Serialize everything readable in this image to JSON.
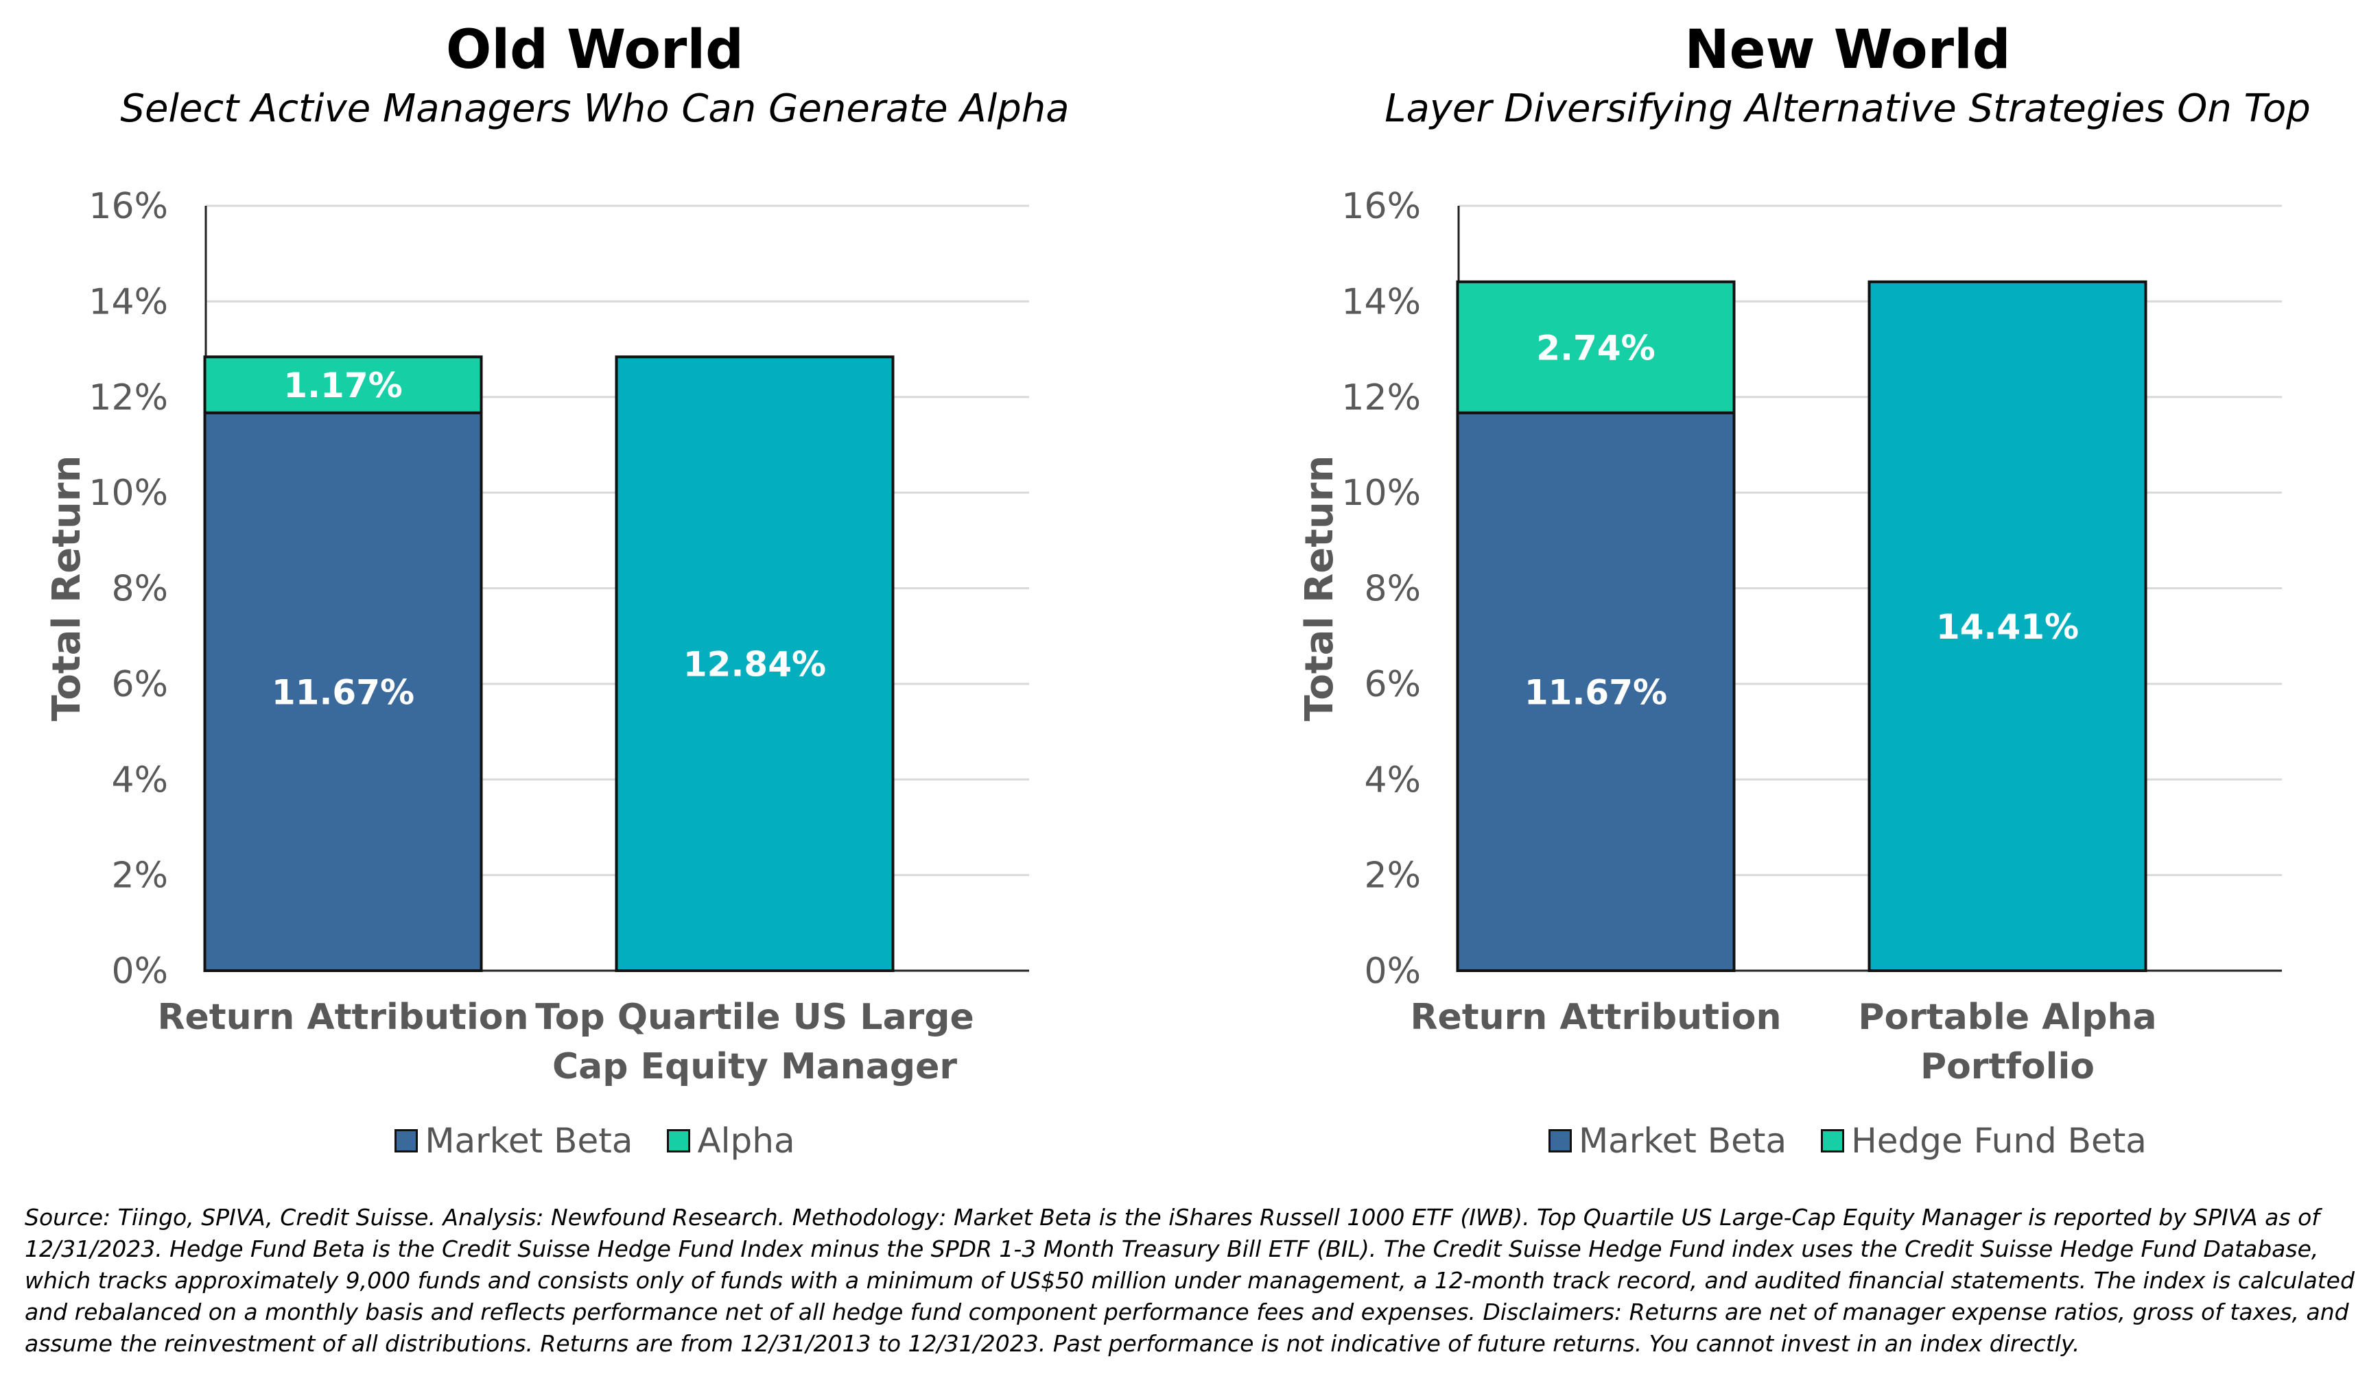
{
  "colors": {
    "market_beta": "#3A6A9C",
    "alpha": "#17CFA5",
    "hedge_fund_beta": "#17CFA5",
    "total": "#03AFBE",
    "grid": "#D9D9D9",
    "axis_text": "#595959"
  },
  "chart_data": [
    {
      "type": "bar",
      "stacked": true,
      "title": "Old World",
      "subtitle": "Select Active Managers Who Can Generate Alpha",
      "ylabel": "Total Return",
      "ylim": [
        0,
        16
      ],
      "yticks": [
        "0%",
        "2%",
        "4%",
        "6%",
        "8%",
        "10%",
        "12%",
        "14%",
        "16%"
      ],
      "grid": true,
      "legend_position": "bottom",
      "categories": [
        "Return Attribution",
        "Top Quartile US Large Cap Equity Manager"
      ],
      "category_lines": [
        [
          "Return Attribution"
        ],
        [
          "Top Quartile US Large",
          "Cap Equity Manager"
        ]
      ],
      "series": [
        {
          "name": "Market Beta",
          "values": [
            11.67,
            null
          ],
          "labels": [
            "11.67%",
            ""
          ]
        },
        {
          "name": "Alpha",
          "values": [
            1.17,
            null
          ],
          "labels": [
            "1.17%",
            ""
          ]
        },
        {
          "name": "",
          "values": [
            null,
            12.84
          ],
          "labels": [
            "",
            "12.84%"
          ]
        }
      ],
      "legend": [
        "Market Beta",
        "Alpha"
      ]
    },
    {
      "type": "bar",
      "stacked": true,
      "title": "New World",
      "subtitle": "Layer Diversifying Alternative Strategies On Top",
      "ylabel": "Total Return",
      "ylim": [
        0,
        16
      ],
      "yticks": [
        "0%",
        "2%",
        "4%",
        "6%",
        "8%",
        "10%",
        "12%",
        "14%",
        "16%"
      ],
      "grid": true,
      "legend_position": "bottom",
      "categories": [
        "Return Attribution",
        "Portable Alpha Portfolio"
      ],
      "category_lines": [
        [
          "Return Attribution"
        ],
        [
          "Portable Alpha",
          "Portfolio"
        ]
      ],
      "series": [
        {
          "name": "Market Beta",
          "values": [
            11.67,
            null
          ],
          "labels": [
            "11.67%",
            ""
          ]
        },
        {
          "name": "Hedge Fund Beta",
          "values": [
            2.74,
            null
          ],
          "labels": [
            "2.74%",
            ""
          ]
        },
        {
          "name": "",
          "values": [
            null,
            14.41
          ],
          "labels": [
            "",
            "14.41%"
          ]
        }
      ],
      "legend": [
        "Market Beta",
        "Hedge Fund Beta"
      ]
    }
  ],
  "panels": {
    "left": {
      "title": "Old World",
      "subtitle": "Select Active Managers Who Can Generate Alpha",
      "legend": [
        "Market Beta",
        "Alpha"
      ]
    },
    "right": {
      "title": "New World",
      "subtitle": "Layer Diversifying Alternative Strategies On Top",
      "legend": [
        "Market Beta",
        "Hedge Fund Beta"
      ]
    }
  },
  "footnote": "Source: Tiingo, SPIVA, Credit Suisse. Analysis: Newfound Research. Methodology: Market Beta is the iShares Russell 1000 ETF (IWB). Top Quartile US Large-Cap Equity Manager is reported by SPIVA as of 12/31/2023. Hedge Fund Beta is the Credit Suisse Hedge Fund Index minus the SPDR 1-3 Month Treasury Bill ETF (BIL). The Credit Suisse Hedge Fund index uses the Credit Suisse Hedge Fund Database, which tracks approximately 9,000 funds and consists only of funds with a minimum of US$50 million under management, a 12-month track record, and audited financial statements. The index is calculated and rebalanced on a monthly basis and reflects performance net of all hedge fund component performance fees and expenses. Disclaimers: Returns are net of manager expense ratios, gross of taxes, and assume the reinvestment of all distributions. Returns are from 12/31/2013 to 12/31/2023. Past performance is not indicative of future returns. You cannot invest in an index directly."
}
